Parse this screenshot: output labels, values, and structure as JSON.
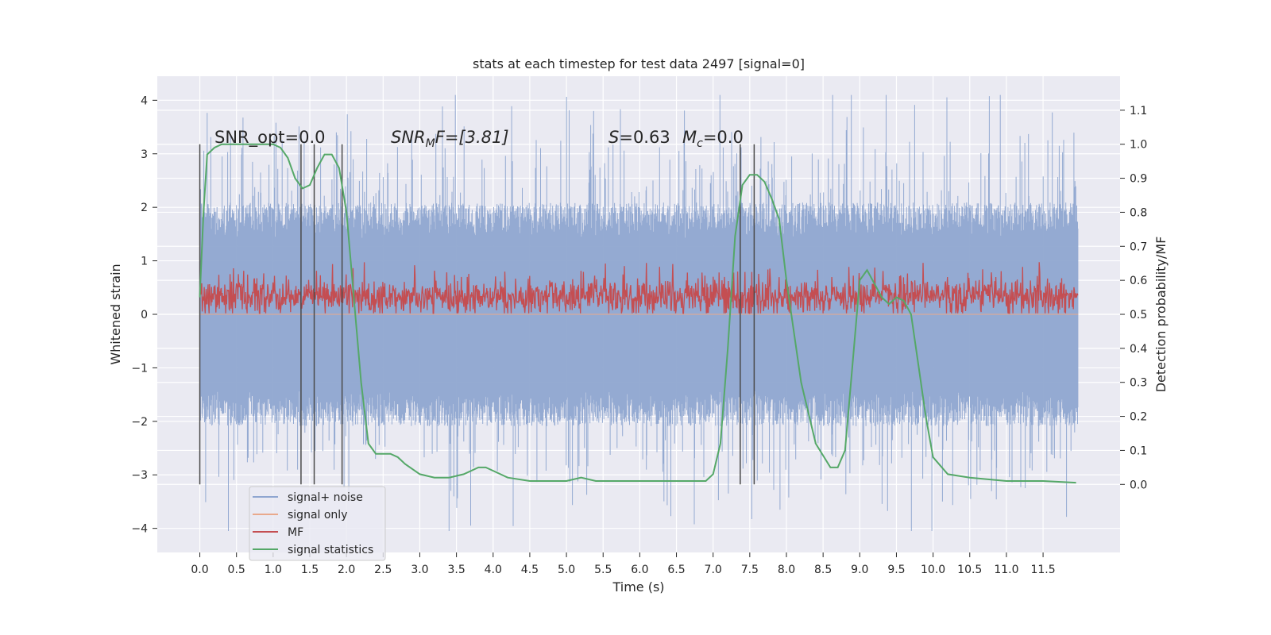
{
  "chart_data": {
    "type": "line",
    "title": "stats at each timestep for test data 2497 [signal=0]",
    "xlabel": "Time (s)",
    "ylabel": "Whitened strain",
    "ylabel_right": "Detection probability/MF",
    "xlim": [
      -0.58,
      12.55
    ],
    "ylim": [
      -4.45,
      4.45
    ],
    "ylim_right": [
      -0.2,
      1.2
    ],
    "xticks": [
      "0.0",
      "0.5",
      "1.0",
      "1.5",
      "2.0",
      "2.5",
      "3.0",
      "3.5",
      "4.0",
      "4.5",
      "5.0",
      "5.5",
      "6.0",
      "6.5",
      "7.0",
      "7.5",
      "8.0",
      "8.5",
      "9.0",
      "9.5",
      "10.0",
      "10.5",
      "11.0",
      "11.5"
    ],
    "yticks": [
      "4",
      "3",
      "2",
      "1",
      "0",
      "−1",
      "−2",
      "−3",
      "−4"
    ],
    "yticks_right": [
      "1.1",
      "1.0",
      "0.9",
      "0.8",
      "0.7",
      "0.6",
      "0.5",
      "0.4",
      "0.3",
      "0.2",
      "0.1",
      "0.0"
    ],
    "annotations": {
      "snr_opt": "SNR_opt=0.0",
      "snr_mf_main": "SNR",
      "snr_mf_sub": "M",
      "snr_mf_rest": "F=[3.81]",
      "s_label": "S",
      "s_value": "=0.63",
      "mc_main": "M",
      "mc_sub": "c",
      "mc_value": "=0.0"
    },
    "vlines": [
      0.0,
      1.38,
      1.56,
      1.94,
      7.37,
      7.56
    ],
    "series": [
      {
        "name": "signal+ noise",
        "color": "#8fa6d0",
        "style": "noise band",
        "mean": 0.0,
        "core_range": [
          -1.9,
          1.9
        ],
        "peak_range": [
          -4.05,
          4.1
        ]
      },
      {
        "name": "signal only",
        "color": "#e9a98c",
        "style": "flat",
        "value": 0.0
      },
      {
        "name": "MF",
        "color": "#c44e52",
        "style": "noise band",
        "core_range": [
          0.0,
          0.98
        ]
      },
      {
        "name": "signal statistics",
        "color": "#55a868",
        "style": "line",
        "x": [
          0.0,
          0.05,
          0.1,
          0.2,
          0.3,
          0.5,
          0.7,
          0.9,
          1.0,
          1.1,
          1.2,
          1.3,
          1.4,
          1.5,
          1.6,
          1.7,
          1.8,
          1.9,
          2.0,
          2.1,
          2.2,
          2.3,
          2.4,
          2.5,
          2.6,
          2.7,
          2.8,
          3.0,
          3.2,
          3.4,
          3.6,
          3.8,
          3.9,
          4.0,
          4.2,
          4.5,
          5.0,
          5.2,
          5.4,
          5.6,
          6.0,
          6.5,
          6.8,
          6.9,
          7.0,
          7.1,
          7.2,
          7.3,
          7.4,
          7.5,
          7.6,
          7.7,
          7.8,
          7.9,
          8.0,
          8.2,
          8.4,
          8.6,
          8.7,
          8.8,
          8.9,
          9.0,
          9.1,
          9.2,
          9.3,
          9.4,
          9.5,
          9.6,
          9.7,
          9.8,
          9.9,
          10.0,
          10.2,
          10.5,
          11.0,
          11.5,
          11.95
        ],
        "y": [
          0.55,
          0.8,
          0.97,
          0.99,
          1.0,
          1.0,
          1.0,
          1.0,
          1.0,
          0.99,
          0.96,
          0.9,
          0.87,
          0.88,
          0.93,
          0.97,
          0.97,
          0.93,
          0.8,
          0.55,
          0.3,
          0.12,
          0.09,
          0.09,
          0.09,
          0.08,
          0.06,
          0.03,
          0.02,
          0.02,
          0.03,
          0.05,
          0.05,
          0.04,
          0.02,
          0.01,
          0.01,
          0.02,
          0.01,
          0.01,
          0.01,
          0.01,
          0.01,
          0.01,
          0.03,
          0.12,
          0.4,
          0.73,
          0.88,
          0.91,
          0.91,
          0.89,
          0.84,
          0.78,
          0.6,
          0.3,
          0.12,
          0.05,
          0.05,
          0.1,
          0.35,
          0.6,
          0.63,
          0.59,
          0.55,
          0.53,
          0.55,
          0.54,
          0.5,
          0.35,
          0.2,
          0.08,
          0.03,
          0.02,
          0.01,
          0.01,
          0.005
        ]
      }
    ],
    "legend_position": "lower left",
    "grid": true
  }
}
